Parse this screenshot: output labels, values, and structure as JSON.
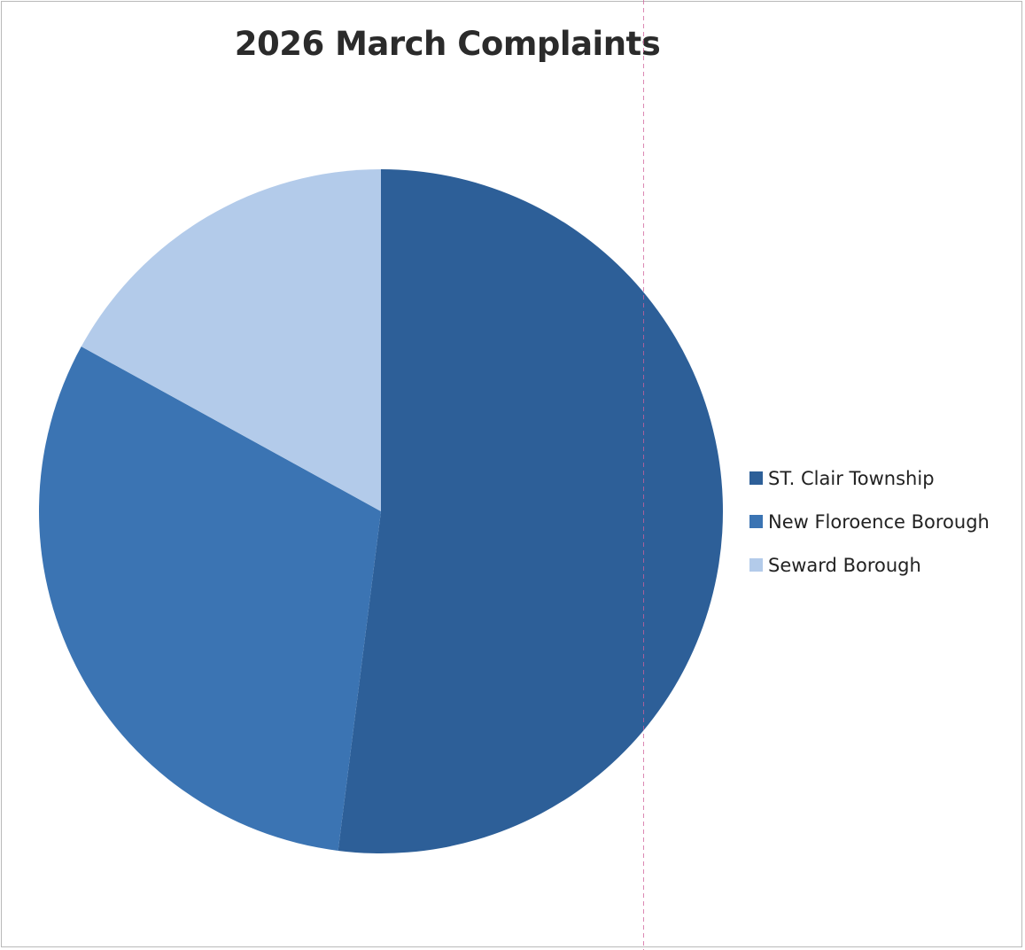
{
  "chart_data": {
    "type": "pie",
    "title": "2026 March Complaints",
    "categories": [
      "ST. Clair Township",
      "New Floroence Borough",
      "Seward Borough"
    ],
    "values": [
      52,
      31,
      17
    ],
    "colors": [
      "#2d5f98",
      "#3b74b3",
      "#b3cbea"
    ],
    "legend_position": "right"
  }
}
